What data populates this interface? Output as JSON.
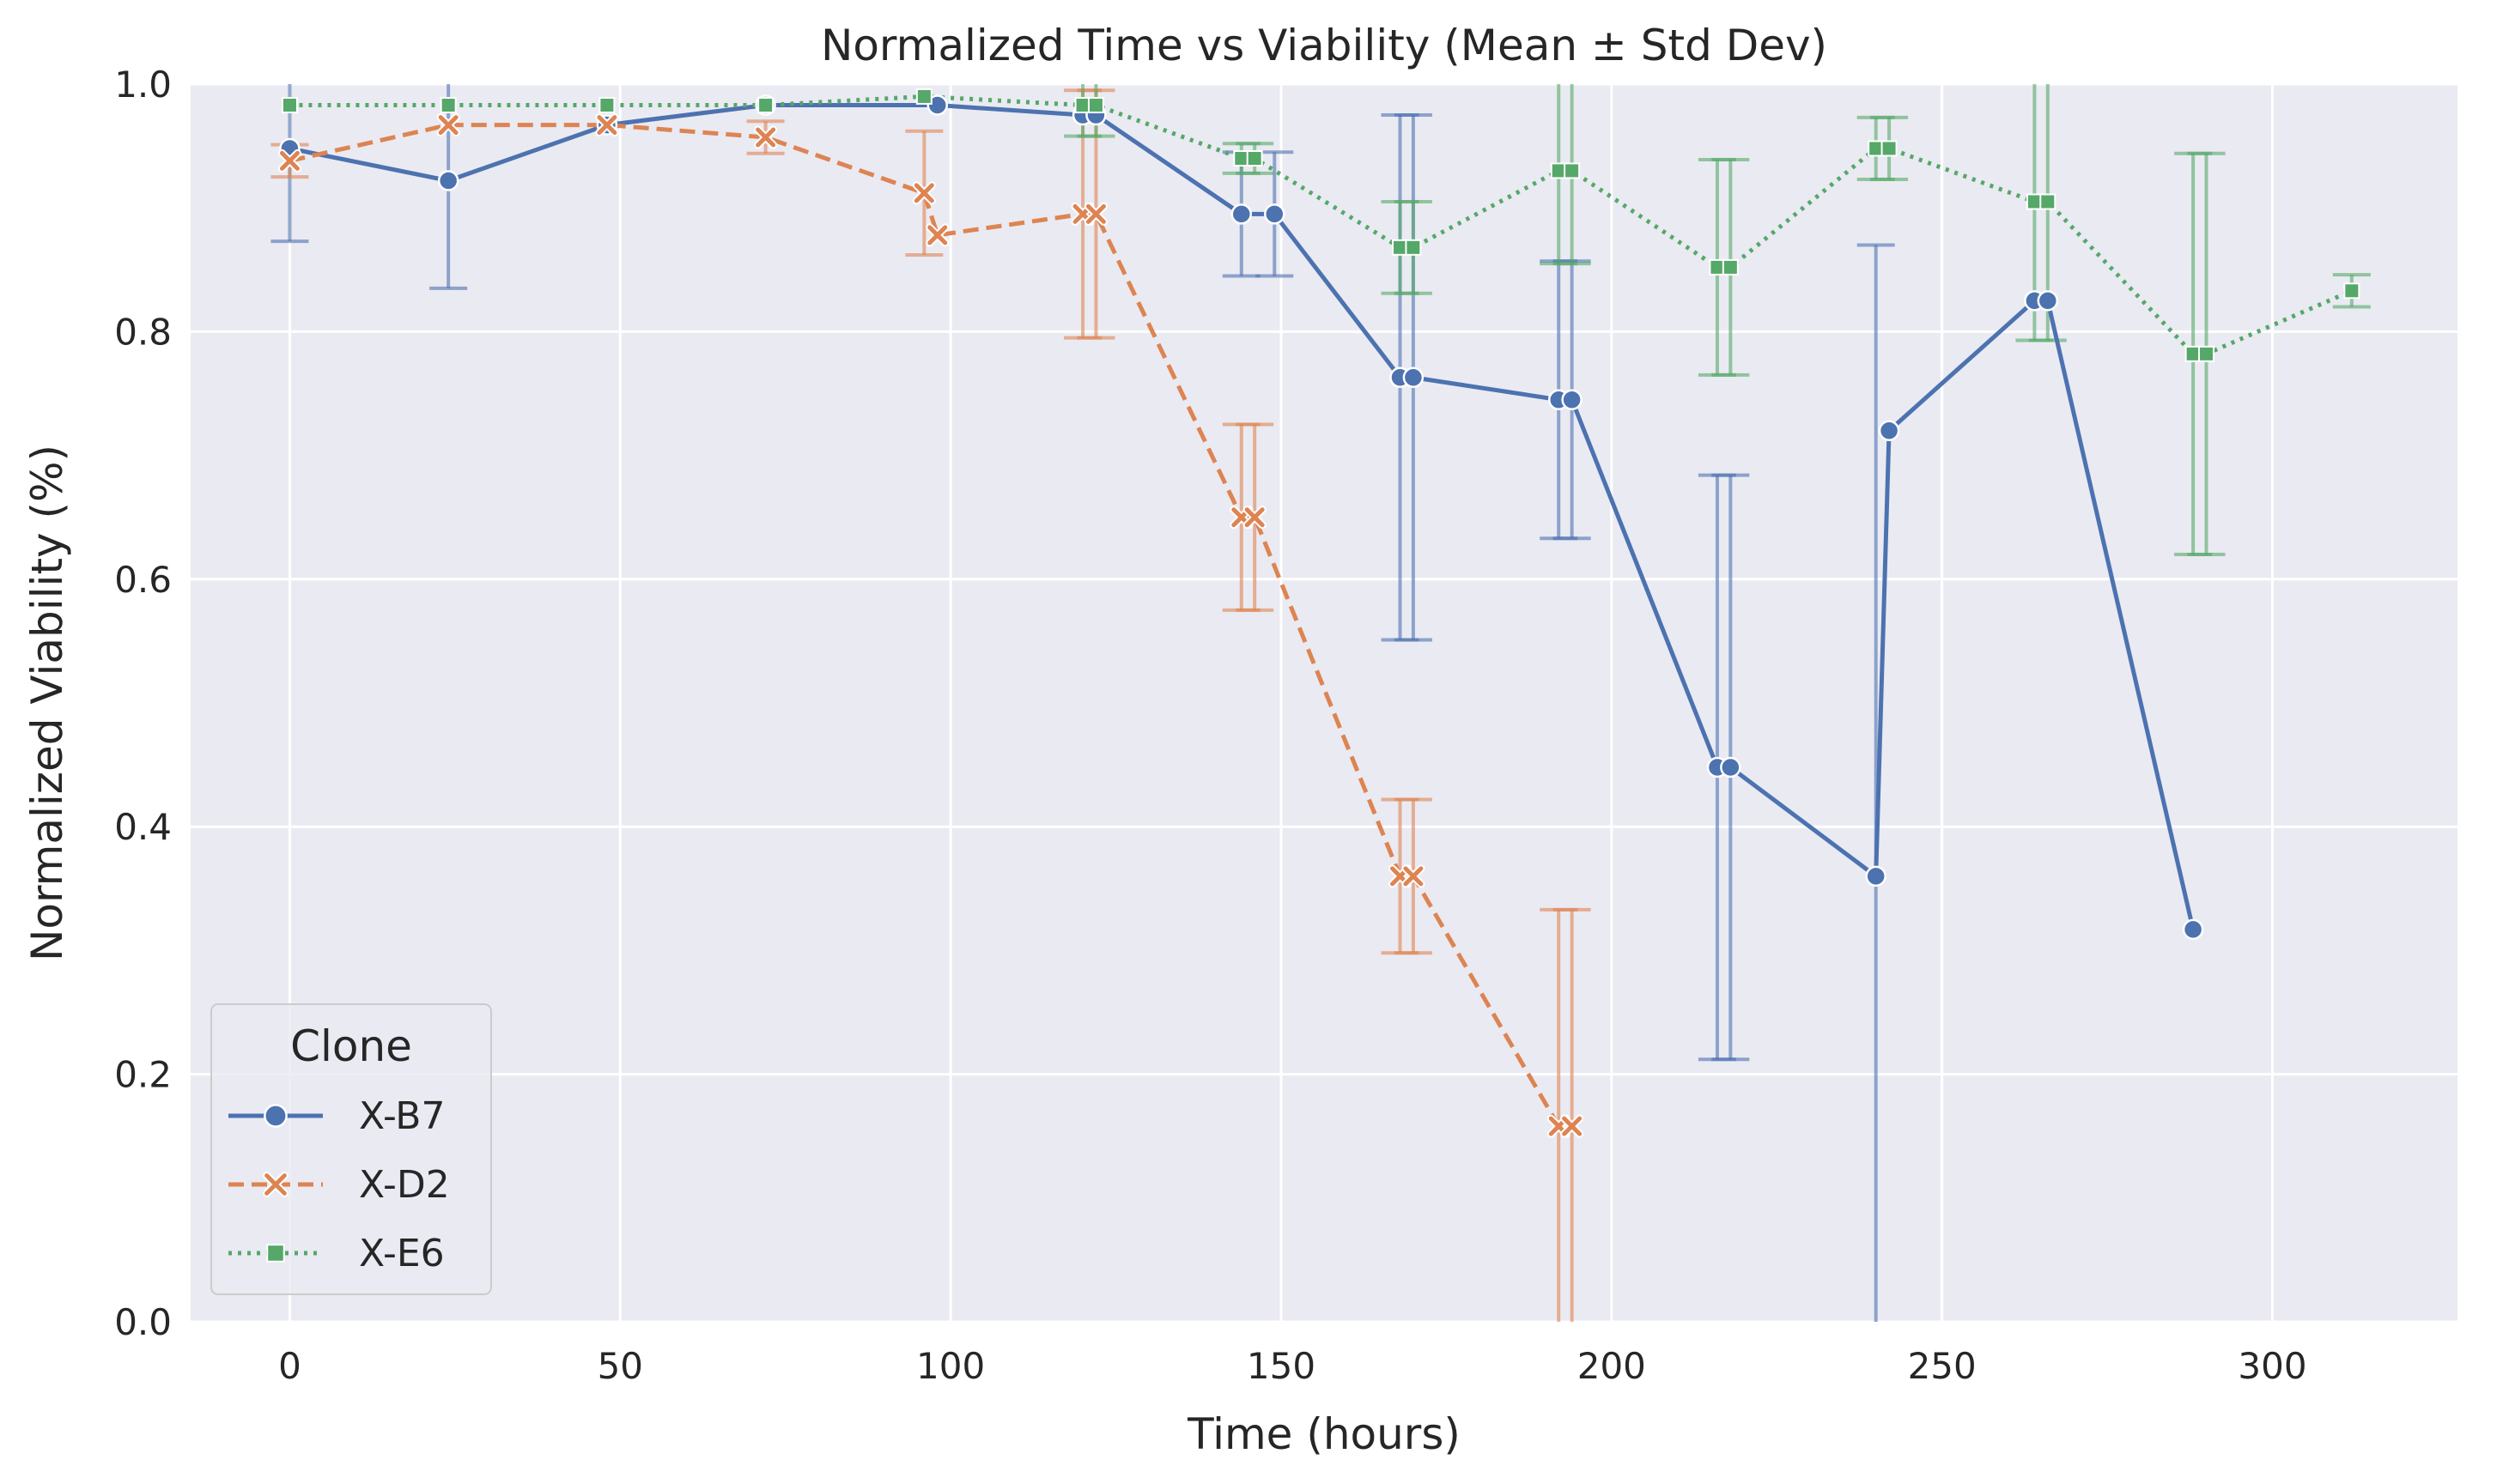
{
  "chart_data": {
    "type": "line",
    "title": "Normalized Time vs Viability (Mean ± Std Dev)",
    "xlabel": "Time (hours)",
    "ylabel": "Normalized Viability (%)",
    "xlim": [
      -15,
      328
    ],
    "ylim": [
      0,
      1
    ],
    "xticks": [
      0,
      50,
      100,
      150,
      200,
      250,
      300
    ],
    "yticks": [
      0.0,
      0.2,
      0.4,
      0.6,
      0.8,
      1.0
    ],
    "xtick_labels": [
      "0",
      "50",
      "100",
      "150",
      "200",
      "250",
      "300"
    ],
    "ytick_labels": [
      "0.0",
      "0.2",
      "0.4",
      "0.6",
      "0.8",
      "1.0"
    ],
    "grid": true,
    "legend": {
      "title": "Clone",
      "position": "bottom-left"
    },
    "series": [
      {
        "name": "X-B7",
        "color": "#4c72b0",
        "marker": "circle",
        "linestyle": "solid",
        "points": [
          {
            "x": 0,
            "y": 0.948,
            "err": 0.075
          },
          {
            "x": 24,
            "y": 0.922,
            "err": 0.087
          },
          {
            "x": 48,
            "y": 0.967,
            "err": null
          },
          {
            "x": 72,
            "y": 0.983,
            "err": null
          },
          {
            "x": 98,
            "y": 0.983,
            "err": null
          },
          {
            "x": 120,
            "y": 0.975,
            "err": null
          },
          {
            "x": 122,
            "y": 0.975,
            "err": null
          },
          {
            "x": 144,
            "y": 0.895,
            "err": 0.05
          },
          {
            "x": 149,
            "y": 0.895,
            "err": 0.05
          },
          {
            "x": 168,
            "y": 0.763,
            "err": 0.212
          },
          {
            "x": 170,
            "y": 0.763,
            "err": 0.212
          },
          {
            "x": 192,
            "y": 0.745,
            "err": 0.112
          },
          {
            "x": 194,
            "y": 0.745,
            "err": 0.112
          },
          {
            "x": 216,
            "y": 0.448,
            "err": 0.236
          },
          {
            "x": 218,
            "y": 0.448,
            "err": 0.236
          },
          {
            "x": 240,
            "y": 0.36,
            "err": 0.51
          },
          {
            "x": 242,
            "y": 0.72,
            "err": null
          },
          {
            "x": 264,
            "y": 0.825,
            "err": null
          },
          {
            "x": 266,
            "y": 0.825,
            "err": null
          },
          {
            "x": 288,
            "y": 0.317,
            "err": null
          }
        ]
      },
      {
        "name": "X-D2",
        "color": "#dd8452",
        "marker": "x",
        "linestyle": "dashed",
        "points": [
          {
            "x": 0,
            "y": 0.938,
            "err": 0.013
          },
          {
            "x": 24,
            "y": 0.967,
            "err": null
          },
          {
            "x": 48,
            "y": 0.967,
            "err": null
          },
          {
            "x": 72,
            "y": 0.957,
            "err": 0.013
          },
          {
            "x": 96,
            "y": 0.912,
            "err": 0.05
          },
          {
            "x": 98,
            "y": 0.878,
            "err": null
          },
          {
            "x": 120,
            "y": 0.895,
            "err": 0.1
          },
          {
            "x": 122,
            "y": 0.895,
            "err": 0.1
          },
          {
            "x": 144,
            "y": 0.65,
            "err": 0.075
          },
          {
            "x": 146,
            "y": 0.65,
            "err": 0.075
          },
          {
            "x": 168,
            "y": 0.36,
            "err": 0.062
          },
          {
            "x": 170,
            "y": 0.36,
            "err": 0.062
          },
          {
            "x": 192,
            "y": 0.158,
            "err": 0.175
          },
          {
            "x": 194,
            "y": 0.158,
            "err": 0.175
          }
        ]
      },
      {
        "name": "X-E6",
        "color": "#55a868",
        "marker": "square",
        "linestyle": "dotted",
        "points": [
          {
            "x": 0,
            "y": 0.983,
            "err": null
          },
          {
            "x": 24,
            "y": 0.983,
            "err": null
          },
          {
            "x": 48,
            "y": 0.983,
            "err": null
          },
          {
            "x": 72,
            "y": 0.983,
            "err": null
          },
          {
            "x": 96,
            "y": 0.99,
            "err": null
          },
          {
            "x": 120,
            "y": 0.983,
            "err": 0.025
          },
          {
            "x": 122,
            "y": 0.983,
            "err": 0.025
          },
          {
            "x": 144,
            "y": 0.94,
            "err": 0.012
          },
          {
            "x": 146,
            "y": 0.94,
            "err": 0.012
          },
          {
            "x": 168,
            "y": 0.868,
            "err": 0.037
          },
          {
            "x": 170,
            "y": 0.868,
            "err": 0.037
          },
          {
            "x": 192,
            "y": 0.93,
            "err": 0.075
          },
          {
            "x": 194,
            "y": 0.93,
            "err": 0.075
          },
          {
            "x": 216,
            "y": 0.852,
            "err": 0.087
          },
          {
            "x": 218,
            "y": 0.852,
            "err": 0.087
          },
          {
            "x": 240,
            "y": 0.948,
            "err": 0.025
          },
          {
            "x": 242,
            "y": 0.948,
            "err": 0.025
          },
          {
            "x": 264,
            "y": 0.905,
            "err": 0.112
          },
          {
            "x": 266,
            "y": 0.905,
            "err": 0.112
          },
          {
            "x": 288,
            "y": 0.782,
            "err": 0.162
          },
          {
            "x": 290,
            "y": 0.782,
            "err": 0.162
          },
          {
            "x": 312,
            "y": 0.833,
            "err": 0.013
          }
        ]
      }
    ]
  }
}
